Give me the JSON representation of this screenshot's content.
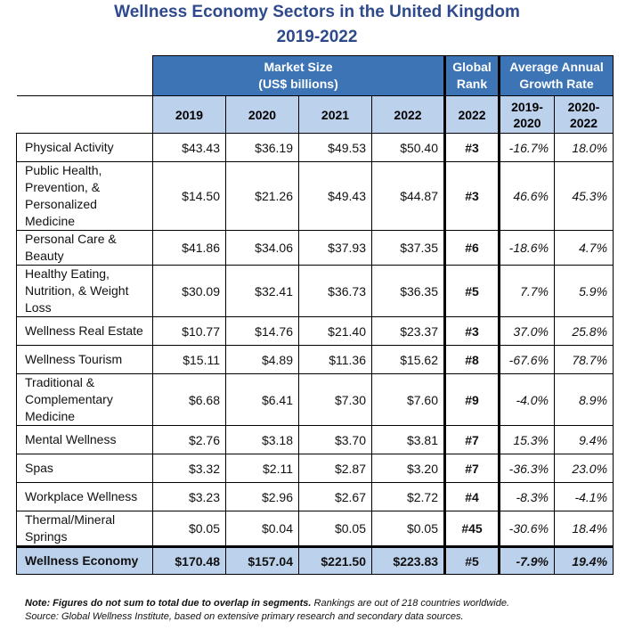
{
  "title_line1": "Wellness Economy Sectors in the United Kingdom",
  "title_line2": "2019-2022",
  "headers": {
    "market_size": "Market Size",
    "market_size_unit": "(US$ billions)",
    "global_rank_line1": "Global",
    "global_rank_line2": "Rank",
    "growth_line1": "Average Annual",
    "growth_line2": "Growth Rate",
    "years": [
      "2019",
      "2020",
      "2021",
      "2022"
    ],
    "rank_year": "2022",
    "growth_periods": [
      [
        "2019-",
        "2020"
      ],
      [
        "2020-",
        "2022"
      ]
    ]
  },
  "rows": [
    {
      "sector": "Physical Activity",
      "v2019": "$43.43",
      "v2020": "$36.19",
      "v2021": "$49.53",
      "v2022": "$50.40",
      "rank": "#3",
      "g1": "-16.7%",
      "g2": "18.0%"
    },
    {
      "sector": "Public Health, Prevention, & Personalized Medicine",
      "v2019": "$14.50",
      "v2020": "$21.26",
      "v2021": "$49.43",
      "v2022": "$44.87",
      "rank": "#3",
      "g1": "46.6%",
      "g2": "45.3%"
    },
    {
      "sector": "Personal Care & Beauty",
      "v2019": "$41.86",
      "v2020": "$34.06",
      "v2021": "$37.93",
      "v2022": "$37.35",
      "rank": "#6",
      "g1": "-18.6%",
      "g2": "4.7%"
    },
    {
      "sector": "Healthy Eating, Nutrition, & Weight Loss",
      "v2019": "$30.09",
      "v2020": "$32.41",
      "v2021": "$36.73",
      "v2022": "$36.35",
      "rank": "#5",
      "g1": "7.7%",
      "g2": "5.9%"
    },
    {
      "sector": "Wellness Real Estate",
      "v2019": "$10.77",
      "v2020": "$14.76",
      "v2021": "$21.40",
      "v2022": "$23.37",
      "rank": "#3",
      "g1": "37.0%",
      "g2": "25.8%"
    },
    {
      "sector": "Wellness Tourism",
      "v2019": "$15.11",
      "v2020": "$4.89",
      "v2021": "$11.36",
      "v2022": "$15.62",
      "rank": "#8",
      "g1": "-67.6%",
      "g2": "78.7%"
    },
    {
      "sector": "Traditional & Complementary Medicine",
      "v2019": "$6.68",
      "v2020": "$6.41",
      "v2021": "$7.30",
      "v2022": "$7.60",
      "rank": "#9",
      "g1": "-4.0%",
      "g2": "8.9%"
    },
    {
      "sector": "Mental Wellness",
      "v2019": "$2.76",
      "v2020": "$3.18",
      "v2021": "$3.70",
      "v2022": "$3.81",
      "rank": "#7",
      "g1": "15.3%",
      "g2": "9.4%"
    },
    {
      "sector": "Spas",
      "v2019": "$3.32",
      "v2020": "$2.11",
      "v2021": "$2.87",
      "v2022": "$3.20",
      "rank": "#7",
      "g1": "-36.3%",
      "g2": "23.0%"
    },
    {
      "sector": "Workplace Wellness",
      "v2019": "$3.23",
      "v2020": "$2.96",
      "v2021": "$2.67",
      "v2022": "$2.72",
      "rank": "#4",
      "g1": "-8.3%",
      "g2": "-4.1%"
    },
    {
      "sector": "Thermal/Mineral Springs",
      "v2019": "$0.05",
      "v2020": "$0.04",
      "v2021": "$0.05",
      "v2022": "$0.05",
      "rank": "#45",
      "g1": "-30.6%",
      "g2": "18.4%"
    }
  ],
  "total": {
    "sector": "Wellness Economy",
    "v2019": "$170.48",
    "v2020": "$157.04",
    "v2021": "$221.50",
    "v2022": "$223.83",
    "rank": "#5",
    "g1": "-7.9%",
    "g2": "19.4%"
  },
  "note_bold": "Note: Figures do not sum to total due to overlap in segments.",
  "note_rest": " Rankings are out of 218 countries worldwide.",
  "source": "Source: Global Wellness Institute, based on extensive primary research and secondary data sources."
}
